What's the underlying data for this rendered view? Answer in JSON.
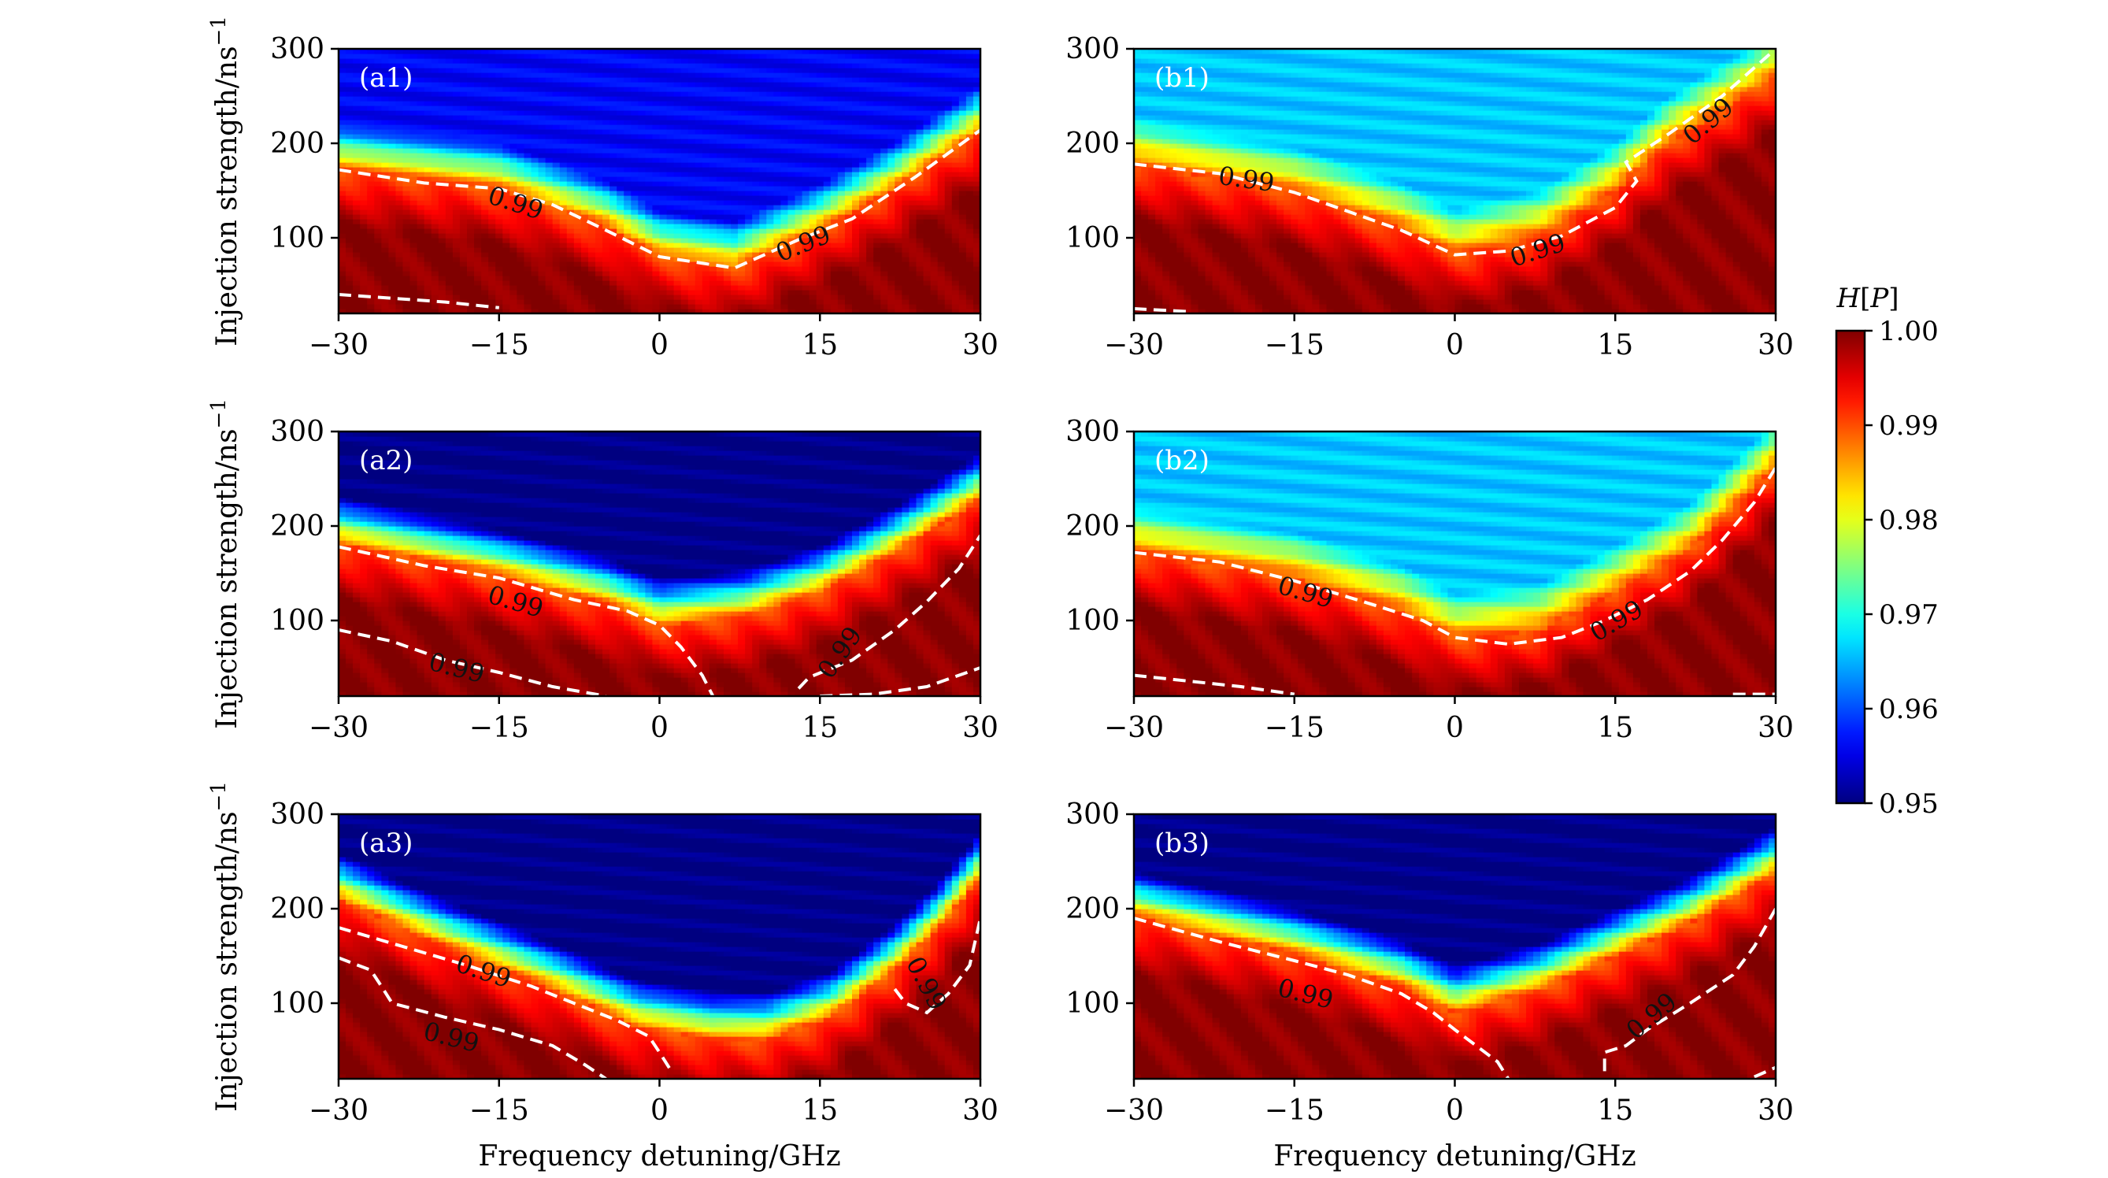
{
  "chart_data": {
    "type": "heatmap",
    "xlabel": "Frequency detuning/GHz",
    "ylabel": "Injection strength/ns",
    "ylabel_superscript": "−1",
    "xlim": [
      -30,
      30
    ],
    "ylim": [
      20,
      300
    ],
    "xticks": [
      -30,
      -15,
      0,
      15,
      30
    ],
    "xtick_labels": [
      "−30",
      "−15",
      "0",
      "15",
      "30"
    ],
    "yticks": [
      100,
      200,
      300
    ],
    "ytick_labels": [
      "100",
      "200",
      "300"
    ],
    "colorbar": {
      "label": "H[P]",
      "label_var": "H",
      "label_arg": "P",
      "min": 0.95,
      "max": 1.0,
      "ticks": [
        0.95,
        0.96,
        0.97,
        0.98,
        0.99,
        1.0
      ],
      "tick_labels": [
        "0.95",
        "0.96",
        "0.97",
        "0.98",
        "0.99",
        "1.00"
      ],
      "colormap": "jet"
    },
    "contour_level": 0.99,
    "panels": [
      {
        "label": "(a1)",
        "floor": 0.956,
        "boundary": [
          [
            -30,
            172
          ],
          [
            -15,
            152
          ],
          [
            -5,
            112
          ],
          [
            0,
            80
          ],
          [
            7,
            68
          ],
          [
            15,
            108
          ],
          [
            22,
            152
          ],
          [
            30,
            212
          ]
        ],
        "contours": [
          {
            "label": "0.99",
            "label_at": [
              -13.5,
              135
            ],
            "label_angle": 18,
            "points": [
              [
                -30,
                172
              ],
              [
                -22,
                158
              ],
              [
                -15,
                152
              ],
              [
                -10,
                135
              ],
              [
                -5,
                108
              ],
              [
                0,
                80
              ],
              [
                7,
                68
              ],
              [
                13,
                98
              ],
              [
                18,
                120
              ],
              [
                24,
                165
              ],
              [
                30,
                214
              ]
            ]
          },
          {
            "label": "",
            "points": [
              [
                -30,
                40
              ],
              [
                -20,
                32
              ],
              [
                -15,
                26
              ]
            ]
          }
        ],
        "contour_labels": [
          {
            "text": "0.99",
            "x": 13.5,
            "y": 92,
            "angle": -22
          }
        ]
      },
      {
        "label": "(a2)",
        "floor": 0.95,
        "boundary": [
          [
            -30,
            182
          ],
          [
            -15,
            148
          ],
          [
            -5,
            118
          ],
          [
            0,
            95
          ],
          [
            8,
            105
          ],
          [
            15,
            130
          ],
          [
            22,
            172
          ],
          [
            30,
            228
          ]
        ],
        "contours": [
          {
            "label": "0.99",
            "label_at": [
              -13.5,
              118
            ],
            "label_angle": 16,
            "points": [
              [
                -30,
                178
              ],
              [
                -22,
                158
              ],
              [
                -15,
                145
              ],
              [
                -8,
                122
              ],
              [
                -3,
                110
              ],
              [
                0,
                95
              ],
              [
                2,
                72
              ],
              [
                4,
                42
              ],
              [
                5,
                20
              ]
            ]
          },
          {
            "label": "0.99",
            "label_at": [
              -19,
              48
            ],
            "label_angle": 14,
            "points": [
              [
                -30,
                90
              ],
              [
                -25,
                78
              ],
              [
                -20,
                58
              ],
              [
                -15,
                45
              ],
              [
                -10,
                30
              ],
              [
                -5,
                20
              ]
            ]
          },
          {
            "label": "0.99",
            "label_at": [
              17,
              65
            ],
            "label_angle": -55,
            "points": [
              [
                13,
                28
              ],
              [
                14,
                40
              ],
              [
                18,
                58
              ],
              [
                22,
                90
              ],
              [
                25,
                120
              ],
              [
                28,
                155
              ],
              [
                30,
                190
              ]
            ]
          },
          {
            "label": "",
            "points": [
              [
                15,
                20
              ],
              [
                20,
                22
              ],
              [
                25,
                30
              ],
              [
                30,
                50
              ]
            ]
          }
        ],
        "contour_labels": []
      },
      {
        "label": "(a3)",
        "floor": 0.95,
        "boundary": [
          [
            -30,
            210
          ],
          [
            -20,
            160
          ],
          [
            -10,
            115
          ],
          [
            -2,
            75
          ],
          [
            5,
            62
          ],
          [
            10,
            62
          ],
          [
            16,
            85
          ],
          [
            22,
            135
          ],
          [
            26,
            178
          ],
          [
            30,
            232
          ]
        ],
        "contours": [
          {
            "label": "0.99",
            "label_at": [
              -16.5,
              132
            ],
            "label_angle": 18,
            "points": [
              [
                -30,
                180
              ],
              [
                -24,
                160
              ],
              [
                -18,
                140
              ],
              [
                -12,
                118
              ],
              [
                -8,
                100
              ],
              [
                -4,
                82
              ],
              [
                -1,
                65
              ],
              [
                0,
                48
              ],
              [
                1,
                30
              ]
            ]
          },
          {
            "label": "0.99",
            "label_at": [
              -19.5,
              62
            ],
            "label_angle": 14,
            "points": [
              [
                -30,
                148
              ],
              [
                -27,
                135
              ],
              [
                -26,
                118
              ],
              [
                -25,
                100
              ],
              [
                -20,
                85
              ],
              [
                -15,
                72
              ],
              [
                -10,
                55
              ],
              [
                -7,
                35
              ],
              [
                -5,
                20
              ]
            ]
          },
          {
            "label": "0.99",
            "label_at": [
              24.8,
              120
            ],
            "label_angle": 62,
            "points": [
              [
                22,
                115
              ],
              [
                23,
                100
              ],
              [
                25,
                90
              ],
              [
                27,
                110
              ],
              [
                29,
                140
              ],
              [
                30,
                190
              ]
            ]
          }
        ],
        "contour_labels": []
      },
      {
        "label": "(b1)",
        "floor": 0.966,
        "boundary": [
          [
            -30,
            178
          ],
          [
            -15,
            148
          ],
          [
            -5,
            110
          ],
          [
            0,
            82
          ],
          [
            8,
            102
          ],
          [
            15,
            150
          ],
          [
            20,
            200
          ],
          [
            30,
            270
          ]
        ],
        "contours": [
          {
            "label": "0.99",
            "label_at": [
              -19.5,
              160
            ],
            "label_angle": 8,
            "points": [
              [
                -30,
                178
              ],
              [
                -22,
                168
              ],
              [
                -15,
                148
              ],
              [
                -10,
                128
              ],
              [
                -5,
                108
              ],
              [
                0,
                82
              ],
              [
                5,
                86
              ],
              [
                10,
                102
              ],
              [
                15,
                132
              ],
              [
                17,
                160
              ],
              [
                16,
                180
              ],
              [
                20,
                210
              ],
              [
                25,
                250
              ],
              [
                30,
                300
              ]
            ]
          },
          {
            "label": "",
            "points": [
              [
                -30,
                25
              ],
              [
                -25,
                22
              ]
            ]
          }
        ],
        "contour_labels": [
          {
            "text": "0.99",
            "x": 7.8,
            "y": 85,
            "angle": -18
          },
          {
            "text": "0.99",
            "x": 23.8,
            "y": 222,
            "angle": -40
          }
        ]
      },
      {
        "label": "(b2)",
        "floor": 0.966,
        "boundary": [
          [
            -30,
            172
          ],
          [
            -15,
            145
          ],
          [
            -5,
            110
          ],
          [
            0,
            80
          ],
          [
            8,
            90
          ],
          [
            15,
            130
          ],
          [
            22,
            175
          ],
          [
            30,
            262
          ]
        ],
        "contours": [
          {
            "label": "0.99",
            "label_at": [
              -14,
              128
            ],
            "label_angle": 16,
            "points": [
              [
                -30,
                172
              ],
              [
                -22,
                162
              ],
              [
                -15,
                142
              ],
              [
                -8,
                118
              ],
              [
                -3,
                100
              ],
              [
                0,
                82
              ],
              [
                5,
                75
              ],
              [
                10,
                82
              ],
              [
                14,
                100
              ],
              [
                18,
                122
              ],
              [
                22,
                152
              ],
              [
                25,
                185
              ],
              [
                28,
                225
              ],
              [
                30,
                262
              ]
            ]
          },
          {
            "label": "",
            "points": [
              [
                -30,
                42
              ],
              [
                -20,
                30
              ],
              [
                -15,
                22
              ]
            ]
          },
          {
            "label": "",
            "points": [
              [
                26,
                22
              ],
              [
                30,
                22
              ]
            ]
          }
        ],
        "contour_labels": [
          {
            "text": "0.99",
            "x": 15.2,
            "y": 98,
            "angle": -30
          }
        ]
      },
      {
        "label": "(b3)",
        "floor": 0.95,
        "boundary": [
          [
            -30,
            192
          ],
          [
            -15,
            152
          ],
          [
            -5,
            118
          ],
          [
            0,
            90
          ],
          [
            8,
            115
          ],
          [
            15,
            150
          ],
          [
            22,
            185
          ],
          [
            30,
            238
          ]
        ],
        "contours": [
          {
            "label": "0.99",
            "label_at": [
              -14,
              108
            ],
            "label_angle": 14,
            "points": [
              [
                -30,
                190
              ],
              [
                -22,
                165
              ],
              [
                -15,
                145
              ],
              [
                -10,
                130
              ],
              [
                -5,
                110
              ],
              [
                -2,
                90
              ],
              [
                0,
                72
              ],
              [
                2,
                55
              ],
              [
                4,
                38
              ],
              [
                5,
                20
              ]
            ]
          },
          {
            "label": "0.99",
            "label_at": [
              18.5,
              85
            ],
            "label_angle": -40,
            "points": [
              [
                14,
                28
              ],
              [
                14,
                48
              ],
              [
                16,
                55
              ],
              [
                18,
                72
              ],
              [
                22,
                100
              ],
              [
                26,
                130
              ],
              [
                28,
                160
              ],
              [
                30,
                200
              ]
            ]
          },
          {
            "label": "",
            "points": [
              [
                28,
                22
              ],
              [
                30,
                32
              ]
            ]
          }
        ],
        "contour_labels": []
      }
    ]
  }
}
